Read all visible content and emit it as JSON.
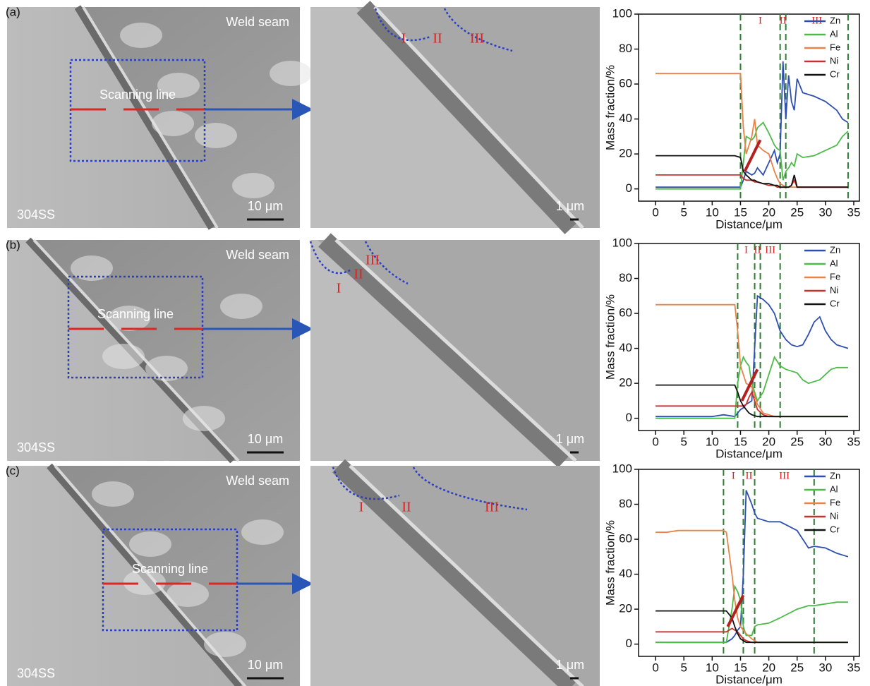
{
  "panels": [
    {
      "label": "(a)",
      "region": "Weld seam",
      "scan": "Scanning line",
      "substrate": "304SS",
      "scale_left": "10 μm",
      "scale_right": "1 μm",
      "zones": [
        "I",
        "II",
        "III"
      ]
    },
    {
      "label": "(b)",
      "region": "Weld seam",
      "scan": "Scanning line",
      "substrate": "304SS",
      "scale_left": "10 μm",
      "scale_right": "1 μm",
      "zones": [
        "I",
        "II",
        "III"
      ]
    },
    {
      "label": "(c)",
      "region": "Weld seam",
      "scan": "Scanning line",
      "substrate": "304SS",
      "scale_left": "10 μm",
      "scale_right": "1 μm",
      "zones": [
        "I",
        "II",
        "III"
      ]
    }
  ],
  "chart_data": [
    {
      "type": "line",
      "xlabel": "Distance/μm",
      "ylabel": "Mass fraction/%",
      "legend": "upper right",
      "xlim": [
        -3,
        36
      ],
      "ylim": [
        -7,
        100
      ],
      "xticks": [
        0,
        5,
        10,
        15,
        20,
        25,
        30,
        35
      ],
      "yticks": [
        0,
        20,
        40,
        60,
        80,
        100
      ],
      "boundaries": [
        15,
        22,
        23,
        34
      ],
      "regions": [
        "I",
        "II",
        "III"
      ],
      "x": [
        0,
        2,
        4,
        6,
        8,
        10,
        12,
        14,
        15,
        15.5,
        16,
        17,
        17.5,
        18,
        19,
        20,
        21,
        21.5,
        22,
        22.5,
        23,
        23.5,
        24,
        24.5,
        25,
        26,
        28,
        30,
        32,
        33,
        34
      ],
      "series": [
        {
          "name": "Zn",
          "color": "#2f4fb0",
          "values": [
            1,
            1,
            1,
            1,
            1,
            1,
            1,
            1,
            1,
            5,
            10,
            8,
            9,
            12,
            8,
            15,
            22,
            15,
            20,
            73,
            40,
            65,
            50,
            45,
            63,
            55,
            53,
            50,
            45,
            40,
            38
          ]
        },
        {
          "name": "Al",
          "color": "#4cbb47",
          "values": [
            0,
            0,
            0,
            0,
            0,
            0,
            0,
            0,
            0,
            15,
            30,
            28,
            30,
            35,
            38,
            32,
            25,
            23,
            22,
            5,
            10,
            12,
            15,
            13,
            20,
            18,
            19,
            22,
            25,
            30,
            33
          ]
        },
        {
          "name": "Fe",
          "color": "#e8834a",
          "values": [
            66,
            66,
            66,
            66,
            66,
            66,
            66,
            66,
            66,
            35,
            20,
            30,
            40,
            25,
            22,
            20,
            10,
            6,
            3,
            2,
            1,
            1,
            1,
            1,
            1,
            1,
            1,
            1,
            1,
            1,
            1
          ]
        },
        {
          "name": "Ni",
          "color": "#c8322d",
          "values": [
            8,
            8,
            8,
            8,
            8,
            8,
            8,
            8,
            8,
            6,
            5,
            5,
            4,
            4,
            3,
            2,
            2,
            1,
            1,
            1,
            1,
            1,
            2,
            5,
            1,
            1,
            1,
            1,
            1,
            1,
            1
          ]
        },
        {
          "name": "Cr",
          "color": "#111111",
          "values": [
            19,
            19,
            19,
            19,
            19,
            19,
            19,
            19,
            18,
            10,
            8,
            5,
            5,
            4,
            3,
            3,
            2,
            2,
            1,
            1,
            1,
            1,
            2,
            8,
            1,
            1,
            1,
            1,
            1,
            1,
            1
          ]
        }
      ]
    },
    {
      "type": "line",
      "xlabel": "Distance/μm",
      "ylabel": "Mass fraction/%",
      "legend": "upper right",
      "xlim": [
        -3,
        36
      ],
      "ylim": [
        -7,
        100
      ],
      "xticks": [
        0,
        5,
        10,
        15,
        20,
        25,
        30,
        35
      ],
      "yticks": [
        0,
        20,
        40,
        60,
        80,
        100
      ],
      "boundaries": [
        14.5,
        17.5,
        18.5,
        22
      ],
      "regions": [
        "I",
        "II",
        "III"
      ],
      "x": [
        0,
        2,
        4,
        6,
        8,
        10,
        12,
        14,
        14.5,
        15,
        15.5,
        16,
        16.5,
        17,
        18,
        19,
        20,
        21,
        22,
        23,
        24,
        25,
        26,
        27,
        28,
        29,
        30,
        31,
        32,
        33,
        34
      ],
      "series": [
        {
          "name": "Zn",
          "color": "#2f4fb0",
          "values": [
            1,
            1,
            1,
            1,
            1,
            1,
            2,
            1,
            3,
            5,
            6,
            8,
            9,
            10,
            70,
            68,
            65,
            60,
            50,
            45,
            42,
            41,
            42,
            48,
            55,
            58,
            50,
            45,
            42,
            41,
            40
          ]
        },
        {
          "name": "Al",
          "color": "#4cbb47",
          "values": [
            0,
            0,
            0,
            0,
            0,
            0,
            0,
            0,
            20,
            30,
            35,
            32,
            30,
            20,
            10,
            15,
            25,
            35,
            30,
            28,
            27,
            26,
            22,
            20,
            21,
            22,
            25,
            28,
            29,
            29,
            29
          ]
        },
        {
          "name": "Fe",
          "color": "#e8834a",
          "values": [
            65,
            65,
            65,
            65,
            65,
            65,
            65,
            65,
            50,
            30,
            25,
            20,
            19,
            18,
            8,
            3,
            2,
            1,
            1,
            1,
            1,
            1,
            1,
            1,
            1,
            1,
            1,
            1,
            1,
            1,
            1
          ]
        },
        {
          "name": "Ni",
          "color": "#c8322d",
          "values": [
            7,
            7,
            7,
            7,
            7,
            7,
            7,
            7,
            7,
            7,
            7,
            8,
            12,
            15,
            5,
            2,
            1,
            1,
            1,
            1,
            1,
            1,
            1,
            1,
            1,
            1,
            1,
            1,
            1,
            1,
            1
          ]
        },
        {
          "name": "Cr",
          "color": "#111111",
          "values": [
            19,
            19,
            19,
            19,
            19,
            19,
            19,
            19,
            15,
            10,
            7,
            5,
            3,
            2,
            1,
            1,
            1,
            1,
            1,
            1,
            1,
            1,
            1,
            1,
            1,
            1,
            1,
            1,
            1,
            1,
            1
          ]
        }
      ]
    },
    {
      "type": "line",
      "xlabel": "Distance/μm",
      "ylabel": "Mass fraction/%",
      "legend": "upper right",
      "xlim": [
        -3,
        36
      ],
      "ylim": [
        -7,
        100
      ],
      "xticks": [
        0,
        5,
        10,
        15,
        20,
        25,
        30,
        35
      ],
      "yticks": [
        0,
        20,
        40,
        60,
        80,
        100
      ],
      "boundaries": [
        12,
        15.5,
        17.5,
        28
      ],
      "regions": [
        "I",
        "II",
        "III"
      ],
      "x": [
        0,
        2,
        4,
        6,
        8,
        10,
        12,
        12.5,
        13.5,
        14,
        14.5,
        15,
        15.5,
        16,
        17,
        17.5,
        18,
        20,
        22,
        25,
        27,
        28,
        30,
        32,
        34
      ],
      "series": [
        {
          "name": "Zn",
          "color": "#2f4fb0",
          "values": [
            1,
            1,
            1,
            1,
            1,
            1,
            1,
            1,
            3,
            5,
            8,
            10,
            40,
            88,
            80,
            75,
            72,
            70,
            70,
            65,
            55,
            56,
            55,
            52,
            50
          ]
        },
        {
          "name": "Al",
          "color": "#4cbb47",
          "values": [
            1,
            1,
            1,
            1,
            1,
            1,
            1,
            1,
            20,
            33,
            30,
            25,
            10,
            5,
            5,
            10,
            11,
            12,
            15,
            20,
            22,
            22,
            23,
            24,
            24
          ]
        },
        {
          "name": "Fe",
          "color": "#e8834a",
          "values": [
            64,
            64,
            65,
            65,
            65,
            65,
            65,
            64,
            40,
            25,
            15,
            10,
            8,
            6,
            3,
            2,
            1,
            1,
            1,
            1,
            1,
            1,
            1,
            1,
            1
          ]
        },
        {
          "name": "Ni",
          "color": "#c8322d",
          "values": [
            7,
            7,
            7,
            7,
            7,
            7,
            7,
            7,
            9,
            8,
            7,
            5,
            3,
            2,
            1,
            1,
            1,
            1,
            1,
            1,
            1,
            1,
            1,
            1,
            1
          ]
        },
        {
          "name": "Cr",
          "color": "#111111",
          "values": [
            19,
            19,
            19,
            19,
            19,
            19,
            19,
            19,
            15,
            10,
            6,
            3,
            2,
            1,
            1,
            1,
            1,
            1,
            1,
            1,
            1,
            1,
            1,
            1,
            1
          ]
        }
      ]
    }
  ]
}
